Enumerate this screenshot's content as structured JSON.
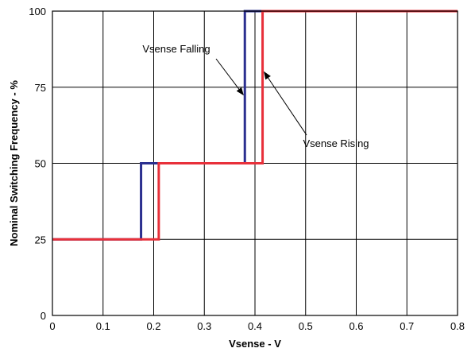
{
  "chart_data": {
    "type": "line",
    "title": "",
    "xlabel": "Vsense - V",
    "ylabel": "Nominal Switching Frequency - %",
    "xlim": [
      0,
      0.8
    ],
    "ylim": [
      0,
      100
    ],
    "x_ticks": [
      0,
      0.1,
      0.2,
      0.3,
      0.4,
      0.5,
      0.6,
      0.7,
      0.8
    ],
    "x_tick_labels": [
      "0",
      "0.1",
      "0.2",
      "0.3",
      "0.4",
      "0.5",
      "0.6",
      "0.7",
      "0.8"
    ],
    "y_ticks": [
      0,
      25,
      50,
      75,
      100
    ],
    "y_tick_labels": [
      "0",
      "25",
      "50",
      "75",
      "100"
    ],
    "grid": true,
    "series": [
      {
        "name": "Vsense Falling",
        "color": "#2b2f8f",
        "x": [
          0,
          0.175,
          0.175,
          0.38,
          0.38,
          0.8
        ],
        "y": [
          25,
          25,
          50,
          50,
          100,
          100
        ]
      },
      {
        "name": "Vsense Rising",
        "color": "#e8303a",
        "x": [
          0,
          0.21,
          0.21,
          0.415,
          0.415,
          0.8
        ],
        "y": [
          25,
          25,
          50,
          50,
          100,
          100
        ]
      }
    ],
    "annotations": [
      {
        "text": "Vsense Falling",
        "target_series": "Vsense Falling"
      },
      {
        "text": "Vsense Rising",
        "target_series": "Vsense Rising"
      }
    ]
  }
}
